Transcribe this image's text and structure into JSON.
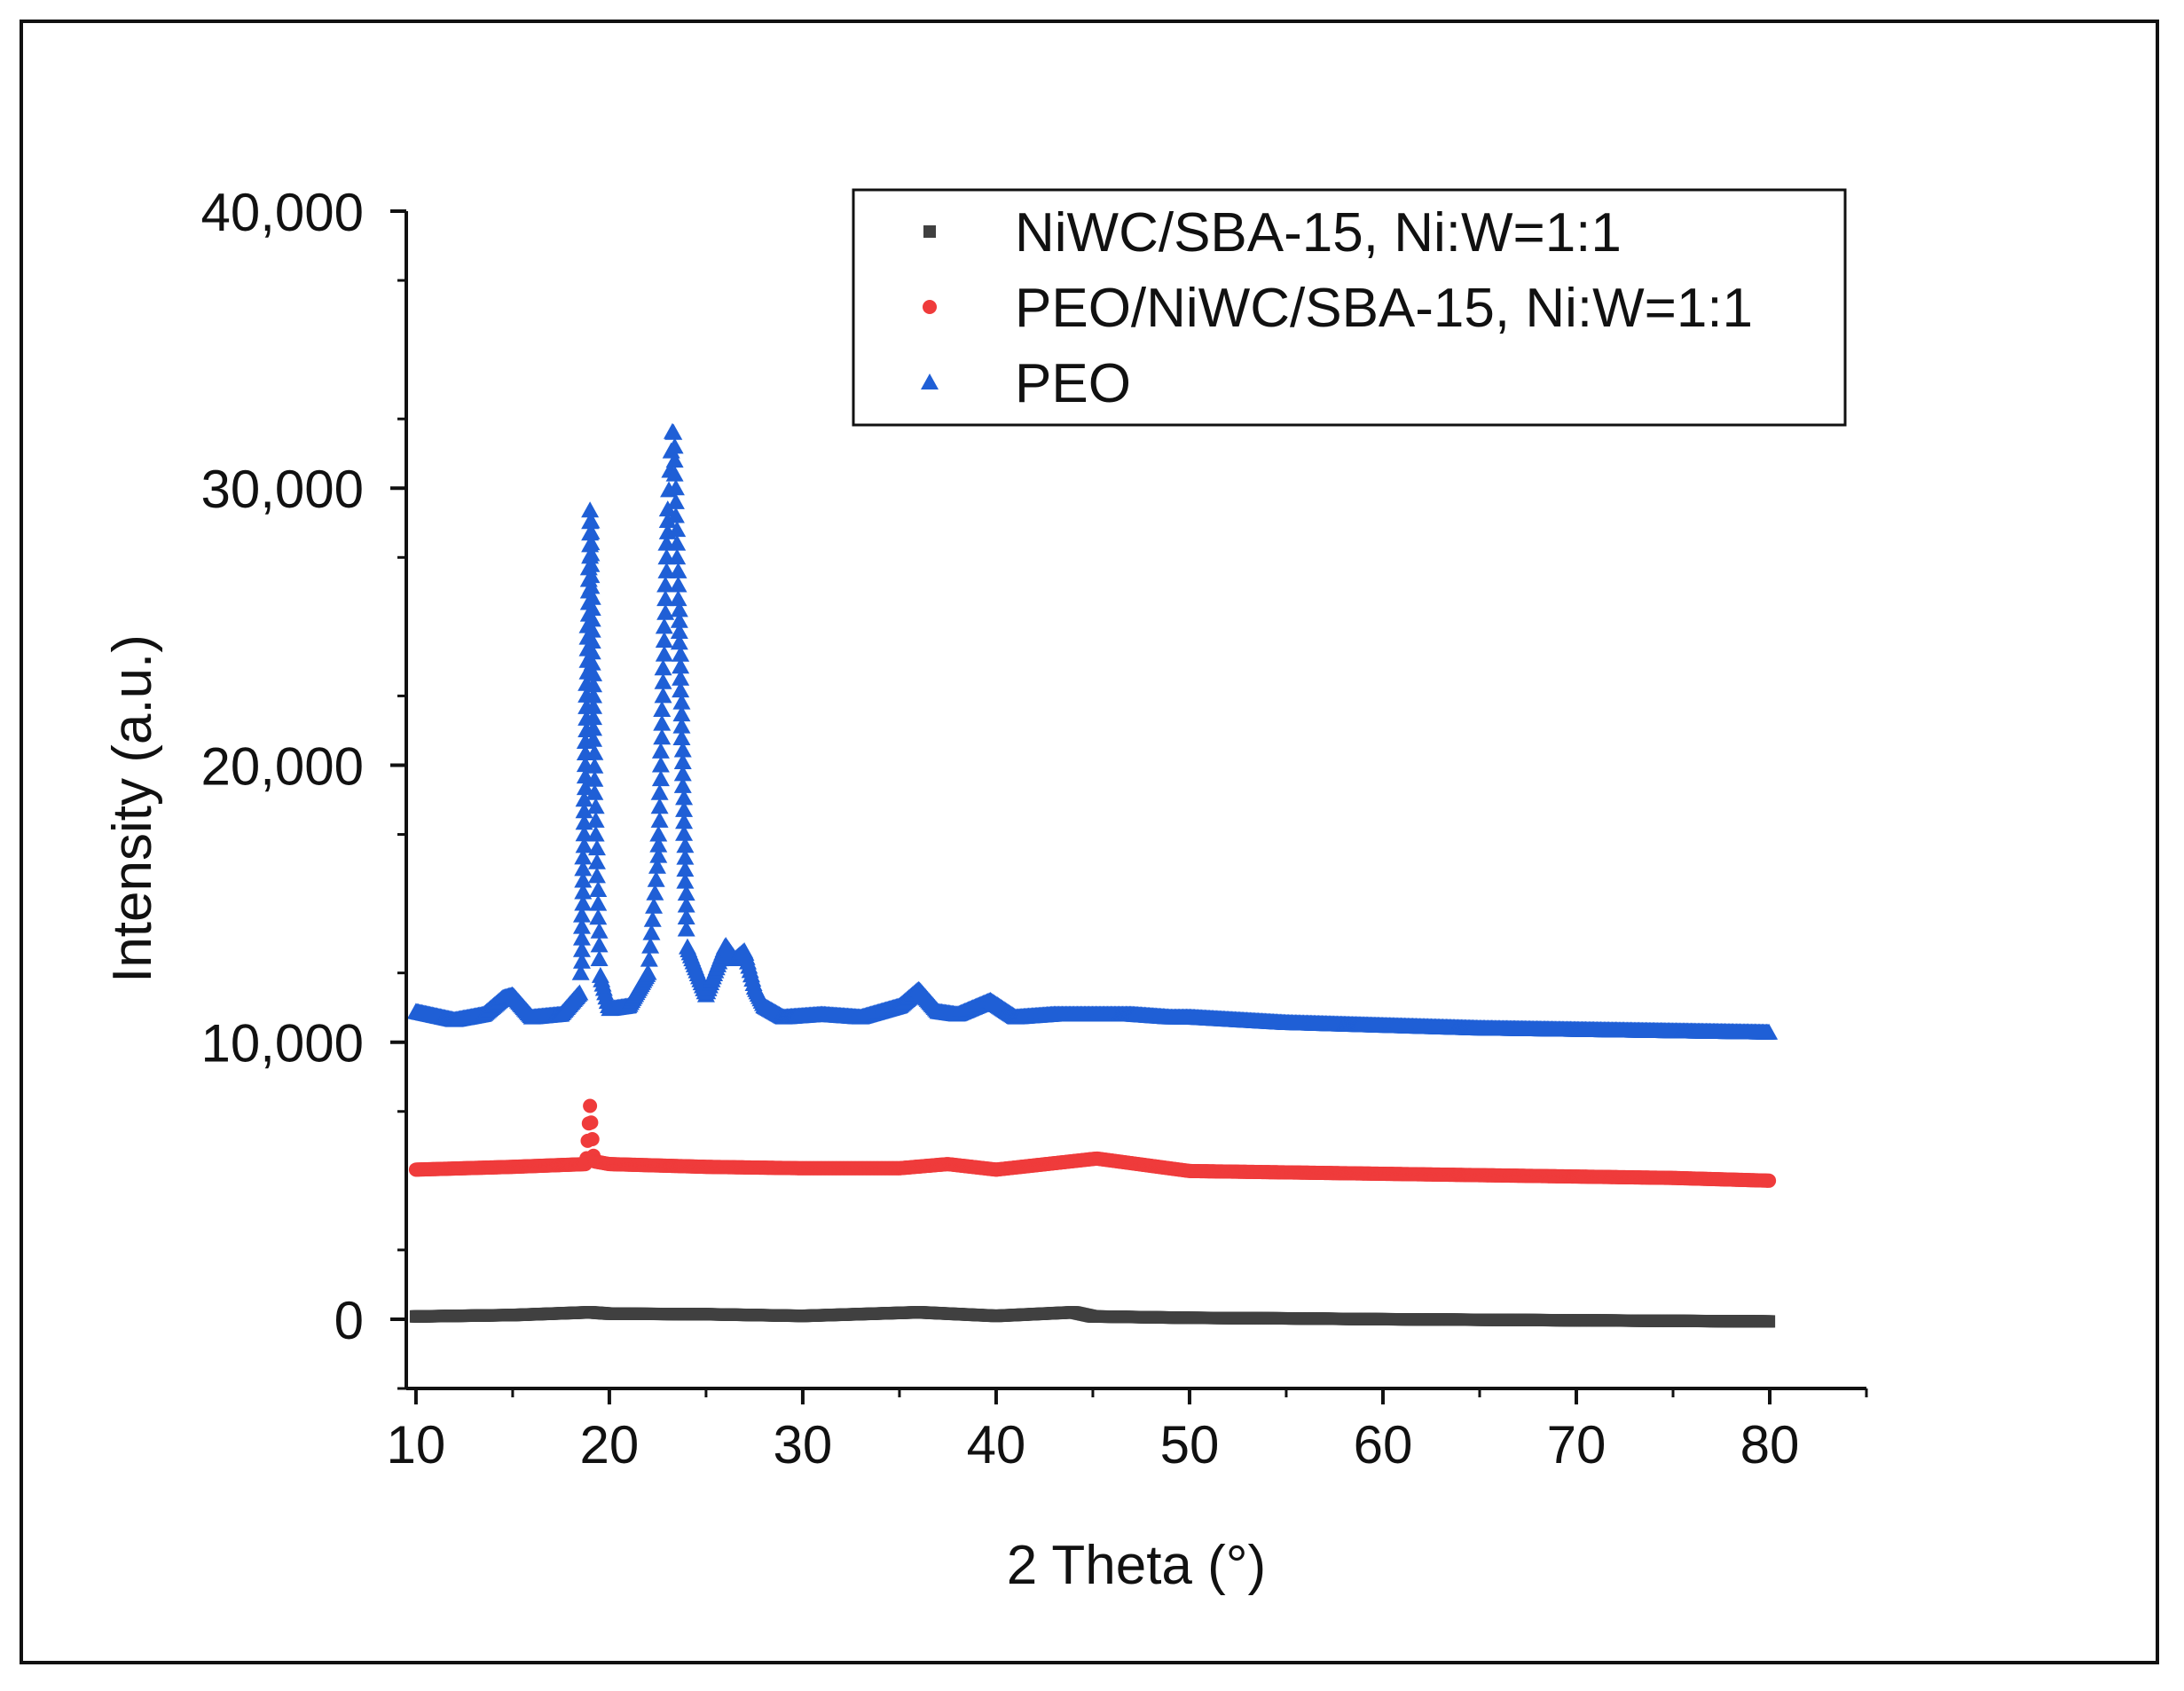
{
  "chart_data": {
    "type": "scatter",
    "title": "",
    "xlabel": "2 Theta (°)",
    "ylabel": "Intensity (a.u.)",
    "xlim": [
      9.5,
      85
    ],
    "ylim": [
      -2500,
      40000
    ],
    "xticks": [
      "10",
      "20",
      "30",
      "40",
      "50",
      "60",
      "70",
      "80"
    ],
    "yticks": [
      "0",
      "10,000",
      "20,000",
      "30,000",
      "40,000"
    ],
    "legend_position": "top-right",
    "series": [
      {
        "name": "NiWC/SBA-15, Ni:W=1:1",
        "color": "#404040",
        "marker": "square",
        "x": [
          10,
          15,
          19,
          20,
          25,
          30,
          36,
          40,
          44,
          45,
          50,
          55,
          60,
          65,
          70,
          75,
          80
        ],
        "y": [
          100,
          150,
          250,
          200,
          180,
          120,
          250,
          120,
          250,
          100,
          50,
          30,
          0,
          -20,
          -40,
          -60,
          -80
        ]
      },
      {
        "name": "PEO/NiWC/SBA-15, Ni:W=1:1",
        "color": "#ef3b3b",
        "marker": "circle",
        "x": [
          10,
          15,
          18.8,
          19.0,
          19.2,
          20,
          25,
          30,
          35,
          37.5,
          40,
          45.2,
          50,
          55,
          60,
          65,
          70,
          75,
          80
        ],
        "y": [
          5400,
          5500,
          5600,
          7700,
          5700,
          5600,
          5500,
          5450,
          5450,
          5600,
          5400,
          5800,
          5350,
          5300,
          5250,
          5200,
          5150,
          5100,
          5000
        ]
      },
      {
        "name": "PEO",
        "color": "#1f5fd6",
        "marker": "triangle",
        "x": [
          10,
          12,
          13.5,
          14.5,
          15,
          16,
          17.5,
          18.5,
          19.0,
          19.2,
          19.5,
          20,
          21,
          22,
          22.5,
          23.0,
          23.3,
          23.6,
          24,
          25,
          26,
          26.5,
          27,
          27.5,
          28,
          29,
          31,
          33,
          35,
          36,
          37,
          38,
          39.7,
          41,
          43,
          45,
          47,
          49,
          50,
          55,
          60,
          65,
          70,
          75,
          80
        ],
        "y": [
          11100,
          10800,
          11000,
          11600,
          11700,
          10900,
          11000,
          11800,
          29200,
          20000,
          12500,
          11200,
          11300,
          12500,
          16500,
          29000,
          32500,
          25000,
          13500,
          11700,
          13500,
          13000,
          13300,
          12000,
          11300,
          10900,
          11000,
          10900,
          11300,
          11900,
          11100,
          11000,
          11500,
          10900,
          11000,
          11000,
          11000,
          10900,
          10900,
          10700,
          10600,
          10500,
          10450,
          10400,
          10350
        ]
      }
    ]
  }
}
